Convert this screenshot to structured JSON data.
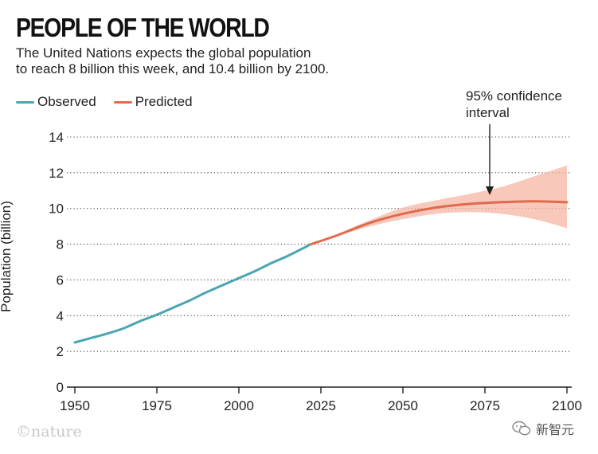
{
  "title": "PEOPLE OF THE WORLD",
  "subtitle_lines": [
    "The United Nations expects the global population",
    "to reach 8 billion this week, and 10.4 billion by 2100."
  ],
  "legend": {
    "observed": "Observed",
    "predicted": "Predicted"
  },
  "annotation_lines": [
    "95% confidence",
    "interval"
  ],
  "credit": "©nature",
  "watermark": "新智元",
  "colors": {
    "observed": "#4aa6b0",
    "predicted": "#e06a4e",
    "band": "#f6b6a3",
    "grid": "#444444"
  },
  "chart_data": {
    "type": "line",
    "title": "PEOPLE OF THE WORLD",
    "xlabel": "",
    "ylabel": "Population (billion)",
    "xlim": [
      1950,
      2100
    ],
    "ylim": [
      0,
      14
    ],
    "x_ticks": [
      1950,
      1975,
      2000,
      2025,
      2050,
      2075,
      2100
    ],
    "y_ticks": [
      0,
      2,
      4,
      6,
      8,
      10,
      12,
      14
    ],
    "grid": "horizontal dotted",
    "legend_position": "top-left",
    "series": [
      {
        "name": "Observed",
        "x": [
          1950,
          1955,
          1960,
          1965,
          1970,
          1975,
          1980,
          1985,
          1990,
          1995,
          2000,
          2005,
          2010,
          2015,
          2022
        ],
        "y": [
          2.5,
          2.75,
          3.0,
          3.3,
          3.7,
          4.05,
          4.45,
          4.85,
          5.3,
          5.7,
          6.1,
          6.5,
          6.95,
          7.35,
          8.0
        ]
      },
      {
        "name": "Predicted",
        "x": [
          2022,
          2030,
          2040,
          2050,
          2060,
          2070,
          2080,
          2090,
          2100
        ],
        "y": [
          8.0,
          8.5,
          9.2,
          9.7,
          10.05,
          10.25,
          10.35,
          10.4,
          10.35
        ],
        "lower": [
          8.0,
          8.45,
          9.0,
          9.4,
          9.7,
          9.8,
          9.7,
          9.4,
          8.9
        ],
        "upper": [
          8.0,
          8.55,
          9.35,
          10.05,
          10.45,
          10.8,
          11.2,
          11.8,
          12.4
        ]
      }
    ]
  }
}
